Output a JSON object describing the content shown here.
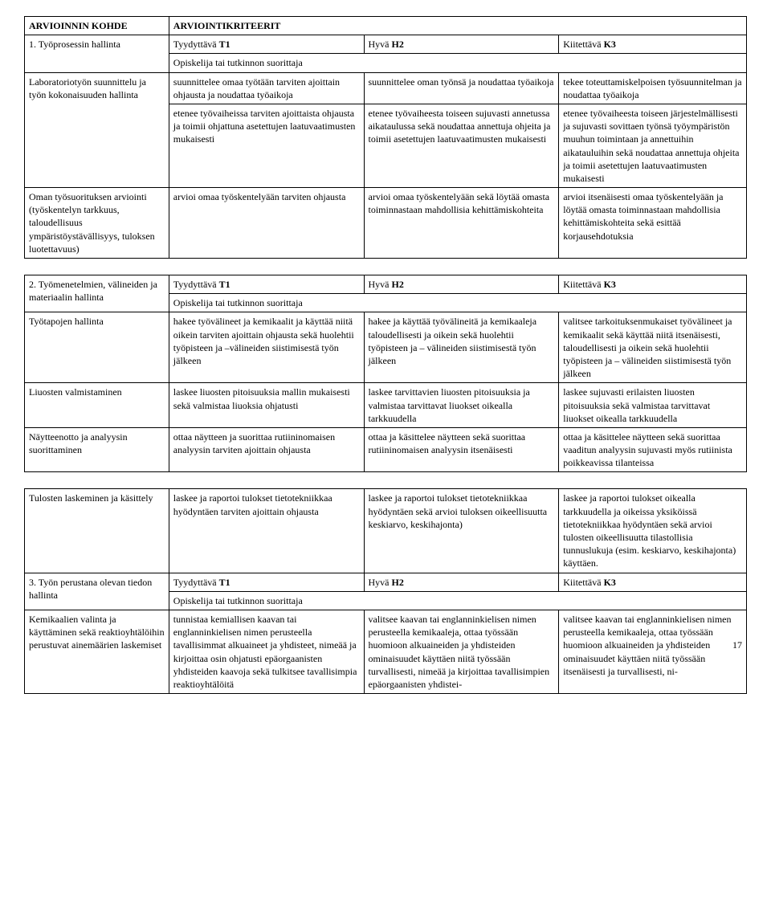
{
  "header": {
    "col1": "ARVIOINNIN KOHDE",
    "col2_span": "ARVIOINTIKRITEERIT"
  },
  "section1": {
    "title": "1. Työprosessin hallinta",
    "t1": "Tyydyttävä T1",
    "h2": "Hyvä H2",
    "k3": "Kiitettävä K3",
    "opiskelija": "Opiskelija tai tutkinnon suorittaja",
    "row1": {
      "label": "Laboratoriotyön suunnittelu ja työn kokonaisuuden hallinta",
      "c1": "suunnittelee omaa työtään tarviten ajoittain ohjausta ja noudattaa työaikoja",
      "c2": "suunnittelee oman työnsä ja noudattaa työaikoja",
      "c3": "tekee toteuttamiskelpoisen työsuunnitelman ja noudattaa työaikoja"
    },
    "row2": {
      "c1": "etenee työvaiheissa tarviten ajoittaista ohjausta ja toimii ohjattuna asetettujen laatuvaatimusten mukaisesti",
      "c2": "etenee työvaiheesta toiseen sujuvasti annetussa aikataulussa sekä noudattaa annettuja ohjeita ja toimii asetettujen laatuvaatimusten mukaisesti",
      "c3": "etenee työvaiheesta toiseen järjestelmällisesti ja sujuvasti sovittaen työnsä työympäristön muuhun toimintaan ja annettuihin aikatauluihin sekä noudattaa annettuja ohjeita ja toimii asetettujen laatuvaatimusten mukaisesti"
    },
    "row3": {
      "label": "Oman työsuorituksen arviointi (työskentelyn tarkkuus, taloudellisuus ympäristöystävällisyys, tuloksen luotettavuus)",
      "c1": "arvioi omaa työskentelyään tarviten ohjausta",
      "c2": "arvioi omaa työskentelyään sekä löytää omasta toiminnastaan mahdollisia kehittämiskohteita",
      "c3": "arvioi itsenäisesti omaa työskentelyään ja löytää omasta toiminnastaan mahdollisia kehittämiskohteita sekä esittää korjausehdotuksia"
    }
  },
  "section2": {
    "title": "2. Työmenetelmien, välineiden ja materiaalin hallinta",
    "t1": "Tyydyttävä T1",
    "h2": "Hyvä H2",
    "k3": "Kiitettävä K3",
    "opiskelija": "Opiskelija tai tutkinnon suorittaja",
    "row1": {
      "label": "Työtapojen hallinta",
      "c1": "hakee työvälineet ja kemikaalit ja käyttää niitä oikein tarviten ajoittain ohjausta sekä huolehtii työpisteen ja –välineiden siistimisestä työn jälkeen",
      "c2": "hakee ja käyttää työvälineitä ja kemikaaleja taloudellisesti ja oikein sekä huolehtii työpisteen ja – välineiden siistimisestä työn jälkeen",
      "c3": "valitsee tarkoituksenmukaiset työvälineet ja kemikaalit sekä käyttää niitä itsenäisesti, taloudellisesti ja oikein sekä huolehtii työpisteen ja – välineiden siistimisestä työn jälkeen"
    },
    "row2": {
      "label": "Liuosten valmistaminen",
      "c1": "laskee liuosten pitoisuuksia mallin mukaisesti sekä valmistaa liuoksia ohjatusti",
      "c2": "laskee tarvittavien liuosten pitoisuuksia ja valmistaa tarvittavat liuokset oikealla tarkkuudella",
      "c3": "laskee sujuvasti erilaisten liuosten pitoisuuksia sekä valmistaa tarvittavat liuokset oikealla tarkkuudella"
    },
    "row3": {
      "label": "Näytteenotto ja analyysin suorittaminen",
      "c1": "ottaa näytteen ja suorittaa rutiininomaisen analyysin tarviten ajoittain ohjausta",
      "c2": "ottaa ja käsittelee näytteen sekä suorittaa rutiininomaisen analyysin itsenäisesti",
      "c3": "ottaa ja käsittelee näytteen sekä suorittaa vaaditun analyysin sujuvasti myös rutiinista poikkeavissa tilanteissa"
    }
  },
  "section3": {
    "row1": {
      "label": "Tulosten laskeminen ja käsittely",
      "c1": "laskee ja raportoi tulokset tietotekniikkaa hyödyntäen tarviten ajoittain ohjausta",
      "c2": "laskee ja raportoi tulokset tietotekniikkaa hyödyntäen sekä arvioi tuloksen oikeellisuutta keskiarvo, keskihajonta)",
      "c3": "laskee ja raportoi tulokset oikealla tarkkuudella ja oikeissa yksiköissä tietotekniikkaa hyödyntäen sekä arvioi tulosten oikeellisuutta tilastollisia tunnuslukuja (esim. keskiarvo, keskihajonta) käyttäen."
    },
    "title": "3. Työn perustana olevan tiedon hallinta",
    "t1": "Tyydyttävä T1",
    "h2": "Hyvä H2",
    "k3": "Kiitettävä K3",
    "opiskelija": "Opiskelija tai tutkinnon suorittaja",
    "row2": {
      "label": "Kemikaalien valinta ja käyttäminen sekä reaktioyhtälöihin perustuvat ainemäärien laskemiset",
      "c1": "tunnistaa kemiallisen kaavan tai englanninkielisen nimen perusteella tavallisimmat alkuaineet ja yhdisteet, nimeää ja kirjoittaa osin ohjatusti epäorgaanisten yhdisteiden kaavoja sekä tulkitsee tavallisimpia reaktioyhtälöitä",
      "c2": "valitsee kaavan tai englanninkielisen nimen perusteella kemikaaleja, ottaa työssään huomioon alkuaineiden ja yhdisteiden ominaisuudet käyttäen niitä työssään turvallisesti, nimeää ja kirjoittaa tavallisimpien epäorgaanisten yhdistei-",
      "c3": "valitsee kaavan tai englanninkielisen nimen perusteella kemikaaleja, ottaa työssään huomioon alkuaineiden ja yhdisteiden ominaisuudet käyttäen niitä työssään itsenäisesti ja turvallisesti, ni-"
    }
  },
  "pagenum": "17"
}
